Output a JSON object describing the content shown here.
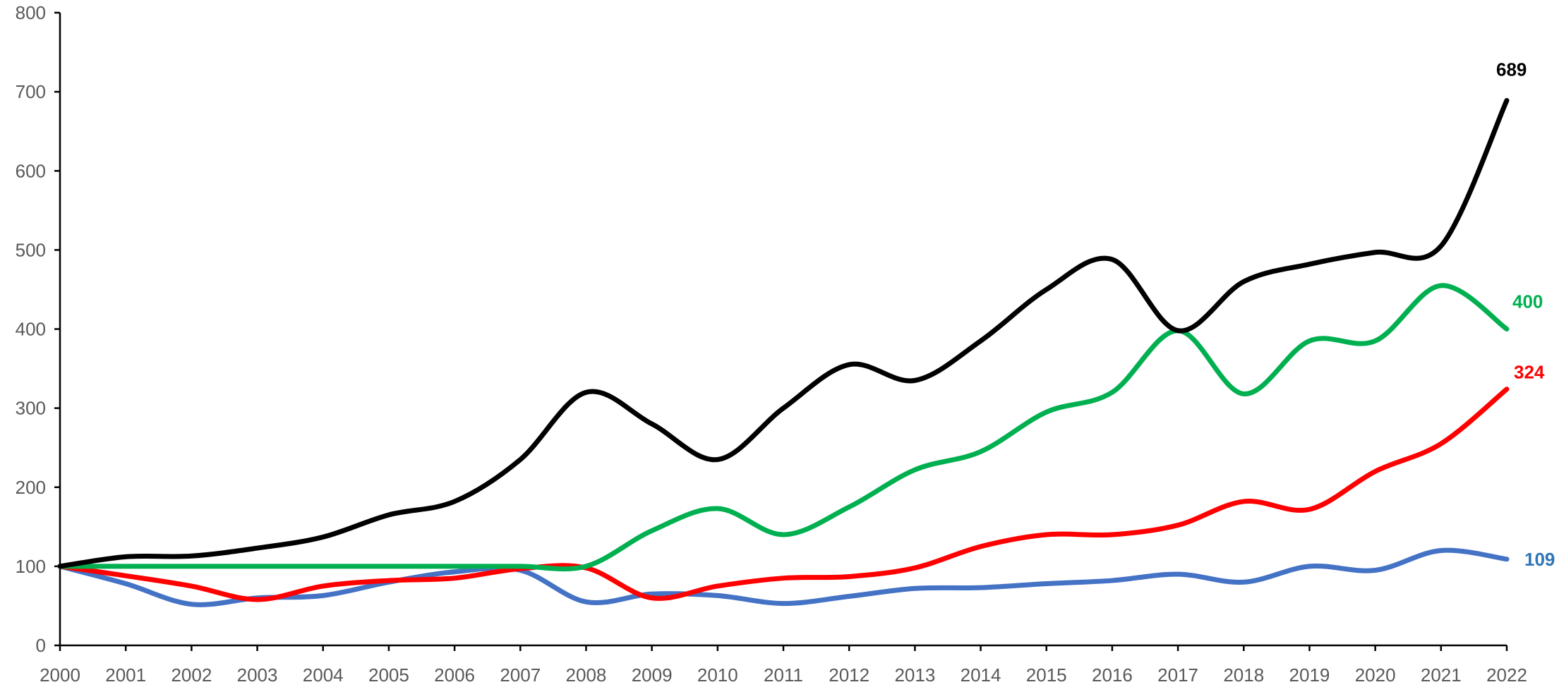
{
  "chart_data": {
    "type": "line",
    "title": "",
    "xlabel": "",
    "ylabel": "",
    "x": [
      "2000",
      "2001",
      "2002",
      "2003",
      "2004",
      "2005",
      "2006",
      "2007",
      "2008",
      "2009",
      "2010",
      "2011",
      "2012",
      "2013",
      "2014",
      "2015",
      "2016",
      "2017",
      "2018",
      "2019",
      "2020",
      "2021",
      "2022"
    ],
    "ylim": [
      0,
      800
    ],
    "yticks": [
      "0",
      "100",
      "200",
      "300",
      "400",
      "500",
      "600",
      "700",
      "800"
    ],
    "grid": false,
    "legend": "none",
    "smooth": true,
    "series": [
      {
        "color": "#000000",
        "values": [
          100,
          112,
          113,
          123,
          137,
          165,
          182,
          235,
          320,
          280,
          235,
          300,
          355,
          335,
          385,
          450,
          488,
          398,
          460,
          482,
          497,
          505,
          689
        ],
        "end_label": "689"
      },
      {
        "color": "#00B050",
        "values": [
          100,
          100,
          100,
          100,
          100,
          100,
          100,
          100,
          100,
          145,
          173,
          140,
          175,
          222,
          245,
          295,
          320,
          398,
          318,
          385,
          385,
          455,
          400
        ],
        "end_label": "400"
      },
      {
        "color": "#FF0000",
        "values": [
          100,
          88,
          75,
          58,
          75,
          82,
          85,
          97,
          98,
          60,
          75,
          85,
          87,
          98,
          125,
          140,
          140,
          152,
          182,
          172,
          220,
          255,
          324
        ],
        "end_label": "324"
      },
      {
        "color": "#4472C4",
        "values": [
          100,
          78,
          52,
          60,
          63,
          80,
          93,
          95,
          55,
          65,
          63,
          53,
          62,
          72,
          73,
          78,
          82,
          90,
          80,
          100,
          95,
          120,
          109
        ],
        "end_label": "109",
        "end_label_color": "#2E75B6"
      }
    ]
  }
}
